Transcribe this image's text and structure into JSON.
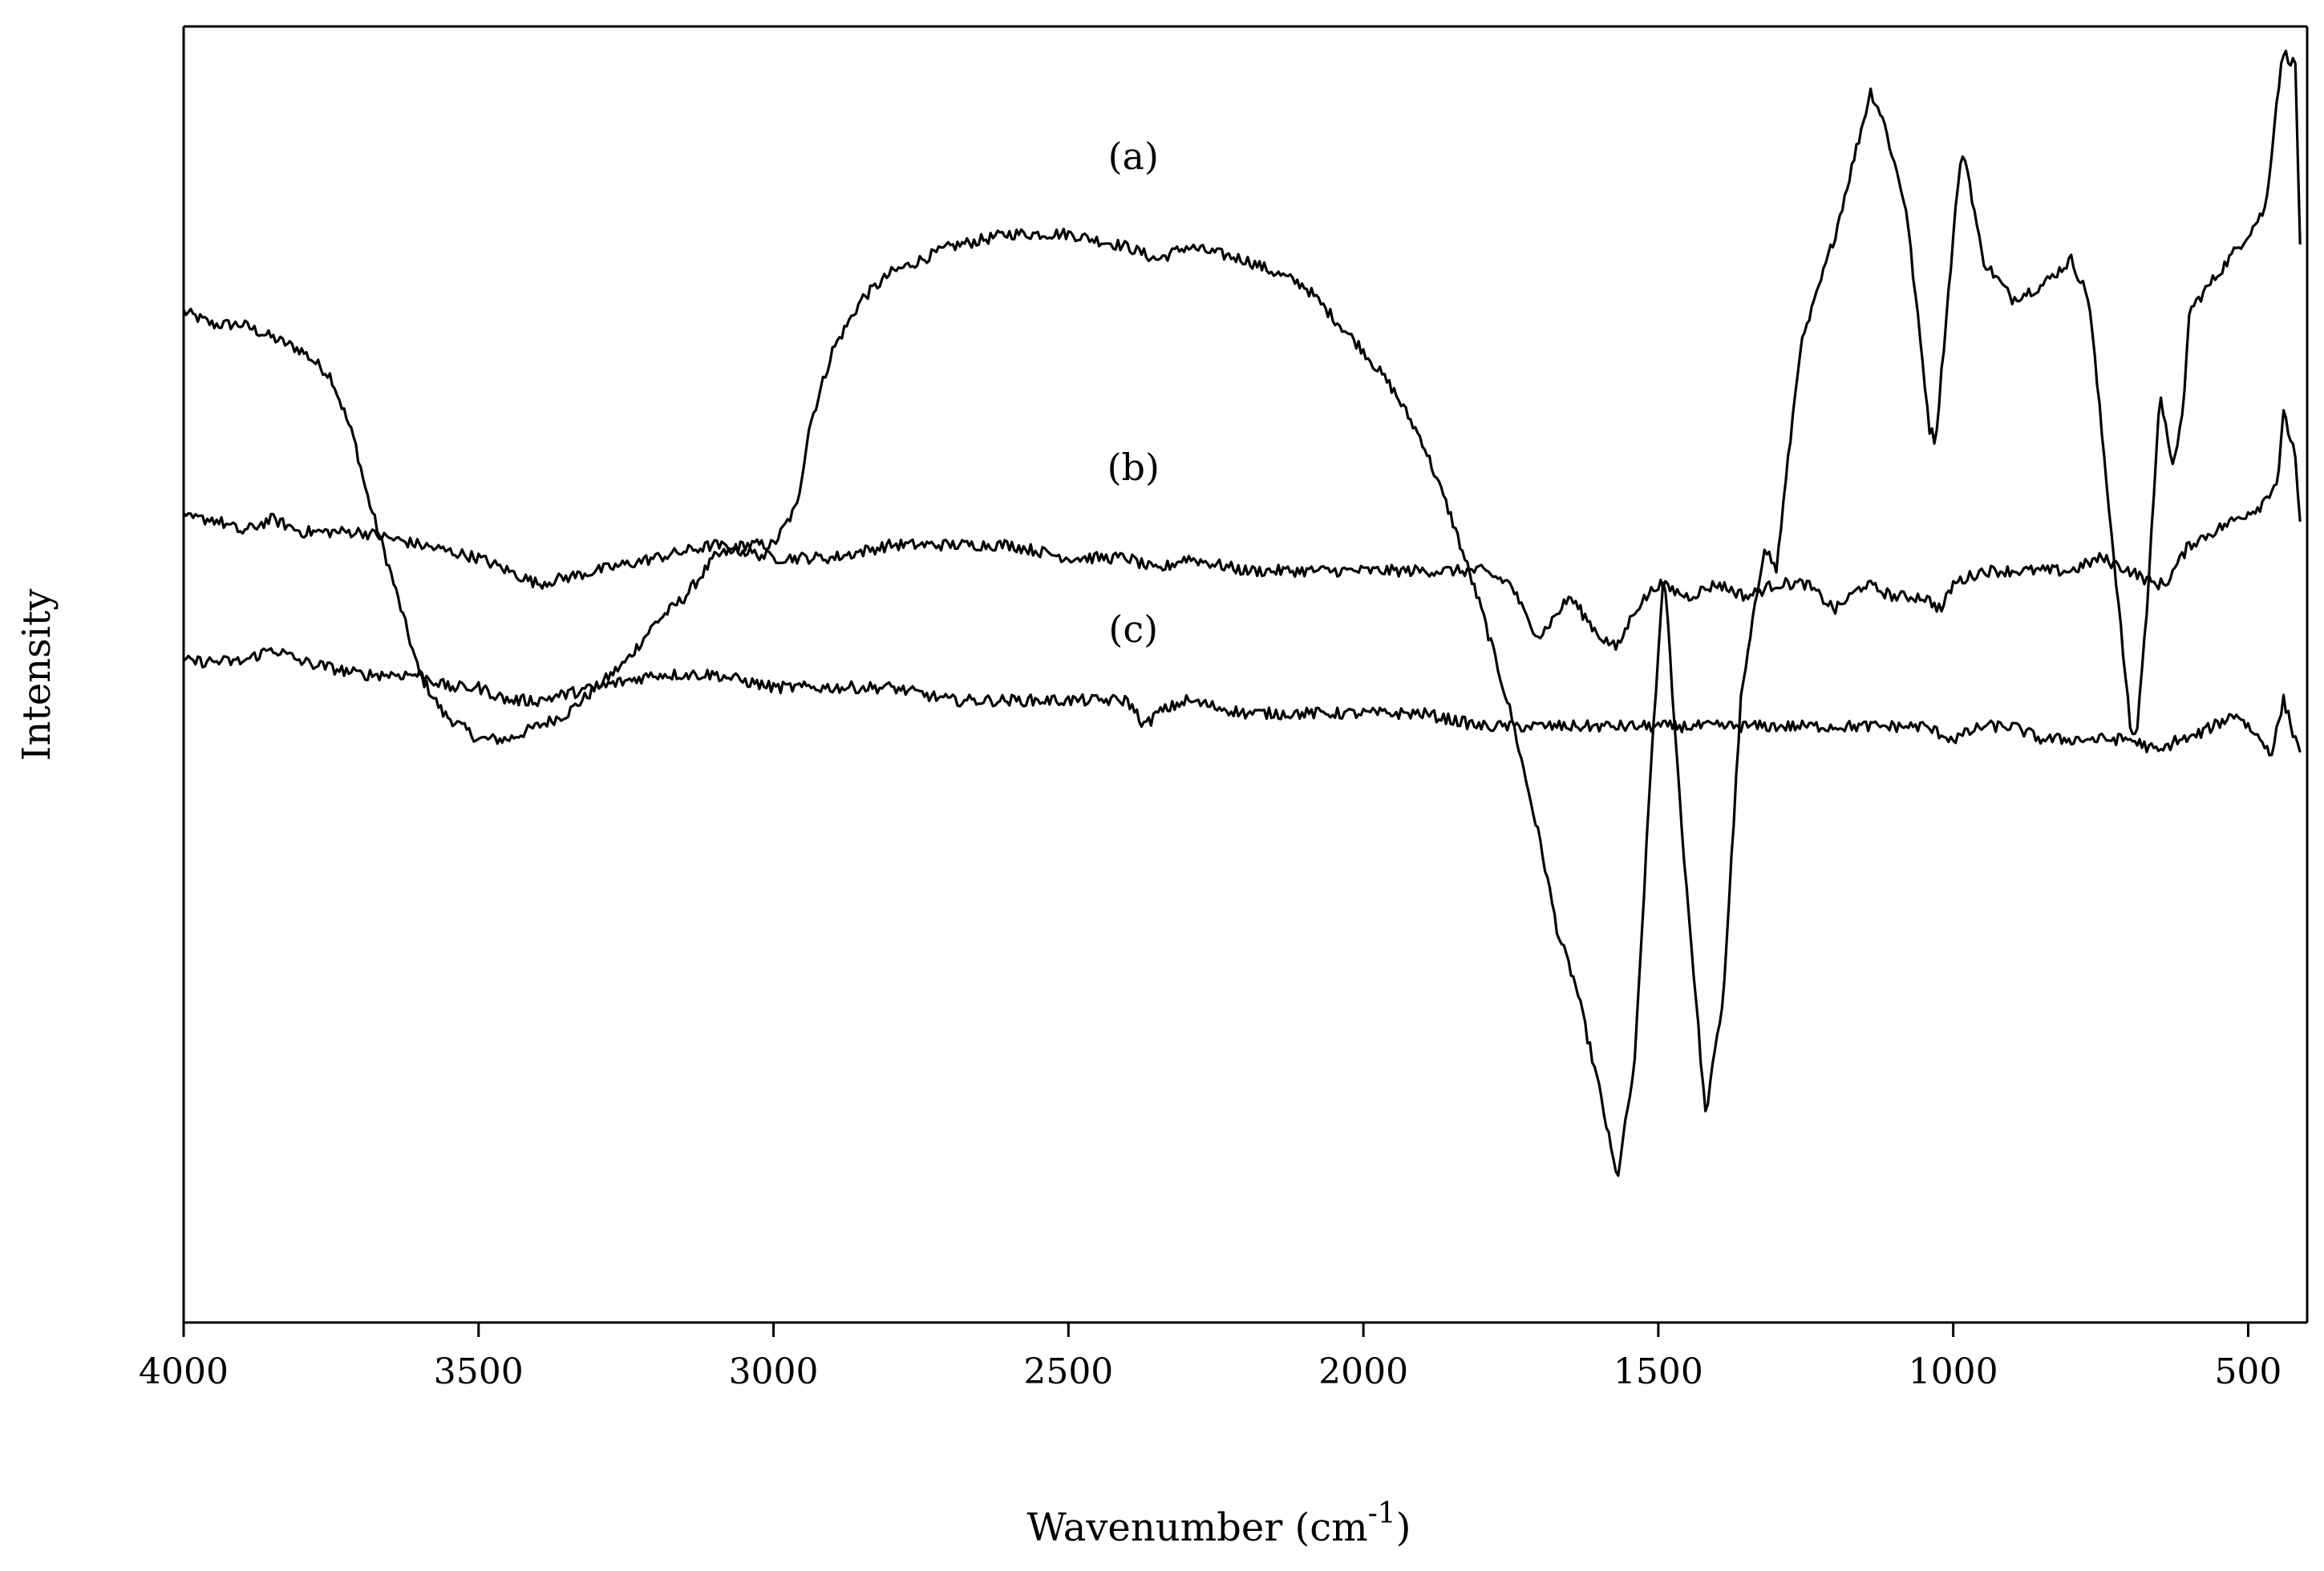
{
  "chart_data": {
    "type": "line",
    "xlabel": "Wavenumber (cm",
    "xlabel_sup": "-1",
    "xlabel_close": ")",
    "ylabel": "Intensity",
    "xlim": [
      4000,
      400
    ],
    "x_reversed": true,
    "ylim": [
      0,
      100
    ],
    "y_ticks_shown": false,
    "grid": false,
    "legend": "none",
    "x_ticks": [
      {
        "value": 4000,
        "label": "4000"
      },
      {
        "value": 3500,
        "label": "3500"
      },
      {
        "value": 3000,
        "label": "3000"
      },
      {
        "value": 2500,
        "label": "2500"
      },
      {
        "value": 2000,
        "label": "2000"
      },
      {
        "value": 1500,
        "label": "1500"
      },
      {
        "value": 1000,
        "label": "1000"
      },
      {
        "value": 500,
        "label": "500"
      }
    ],
    "series": [
      {
        "name": "(a)",
        "label_anchor": {
          "x": 2390,
          "y": 89
        },
        "x": [
          4000,
          3950,
          3900,
          3850,
          3800,
          3750,
          3710,
          3690,
          3650,
          3600,
          3560,
          3500,
          3450,
          3400,
          3350,
          3300,
          3250,
          3200,
          3150,
          3100,
          3050,
          3000,
          2960,
          2940,
          2900,
          2850,
          2800,
          2700,
          2600,
          2500,
          2400,
          2350,
          2300,
          2200,
          2100,
          2000,
          1950,
          1900,
          1850,
          1800,
          1750,
          1700,
          1670,
          1640,
          1600,
          1570,
          1540,
          1510,
          1490,
          1460,
          1420,
          1390,
          1360,
          1320,
          1300,
          1260,
          1200,
          1140,
          1120,
          1080,
          1040,
          1030,
          990,
          980,
          950,
          900,
          850,
          800,
          770,
          700,
          690,
          670,
          650,
          630,
          610,
          600,
          550,
          500,
          470,
          450,
          440,
          420,
          410
        ],
        "y": [
          78,
          77,
          77,
          76,
          75,
          73,
          68,
          64,
          58,
          50,
          47,
          45,
          45,
          46,
          47,
          49,
          51,
          54,
          56,
          59,
          60,
          60,
          63,
          69,
          75,
          79,
          81,
          83,
          84,
          84,
          83,
          82,
          83,
          82,
          80,
          75,
          72,
          68,
          62,
          55,
          47,
          37,
          30,
          26,
          18,
          11,
          20,
          45,
          58,
          38,
          16,
          25,
          48,
          60,
          58,
          75,
          84,
          95,
          93,
          86,
          69,
          68,
          89,
          90,
          82,
          79,
          80,
          82,
          79,
          46,
          45,
          56,
          72,
          66,
          70,
          78,
          81,
          84,
          86,
          95,
          98,
          97,
          80
        ]
      },
      {
        "name": "(b)",
        "label_anchor": {
          "x": 2390,
          "y": 65
        },
        "x": [
          4000,
          3950,
          3900,
          3850,
          3800,
          3700,
          3600,
          3500,
          3450,
          3400,
          3300,
          3200,
          3100,
          3000,
          2900,
          2800,
          2700,
          2600,
          2500,
          2400,
          2350,
          2300,
          2200,
          2100,
          2000,
          1900,
          1800,
          1750,
          1720,
          1700,
          1650,
          1600,
          1570,
          1540,
          1500,
          1450,
          1400,
          1350,
          1300,
          1250,
          1200,
          1150,
          1100,
          1050,
          1020,
          1000,
          950,
          900,
          850,
          800,
          750,
          700,
          660,
          640,
          600,
          560,
          520,
          480,
          450,
          440,
          420,
          410
        ],
        "y": [
          62,
          62,
          61,
          62,
          61,
          61,
          60,
          59,
          58,
          57,
          58,
          59,
          60,
          59,
          59,
          60,
          60,
          60,
          59,
          59,
          58,
          59,
          58,
          58,
          58,
          58,
          58,
          57,
          54,
          53,
          56,
          53,
          52,
          55,
          57,
          56,
          57,
          56,
          57,
          57,
          55,
          57,
          56,
          56,
          55,
          57,
          58,
          58,
          58,
          58,
          59,
          58,
          57,
          57,
          60,
          61,
          62,
          63,
          65,
          70,
          67,
          60
        ]
      },
      {
        "name": "(c)",
        "label_anchor": {
          "x": 2390,
          "y": 52.5
        },
        "x": [
          4000,
          3900,
          3850,
          3800,
          3700,
          3600,
          3550,
          3500,
          3450,
          3400,
          3300,
          3200,
          3100,
          3000,
          2900,
          2800,
          2700,
          2600,
          2500,
          2400,
          2370,
          2350,
          2300,
          2200,
          2100,
          2000,
          1900,
          1800,
          1750,
          1700,
          1650,
          1600,
          1550,
          1500,
          1450,
          1400,
          1350,
          1300,
          1250,
          1200,
          1150,
          1100,
          1050,
          1000,
          950,
          900,
          850,
          800,
          750,
          700,
          650,
          620,
          600,
          560,
          520,
          500,
          480,
          460,
          440,
          420,
          410
        ],
        "y": [
          51,
          51,
          52,
          51,
          50,
          50,
          49,
          49,
          48,
          48,
          49,
          50,
          50,
          49,
          49,
          49,
          48,
          48,
          48,
          48,
          46,
          47,
          48,
          47,
          47,
          47,
          47,
          46,
          46,
          46,
          46,
          46,
          46,
          46,
          46,
          46,
          46,
          46,
          46,
          46,
          46,
          46,
          46,
          45,
          46,
          46,
          45,
          45,
          45,
          45,
          44,
          45,
          45,
          46,
          47,
          46,
          45,
          44,
          48,
          45,
          44
        ]
      }
    ]
  }
}
